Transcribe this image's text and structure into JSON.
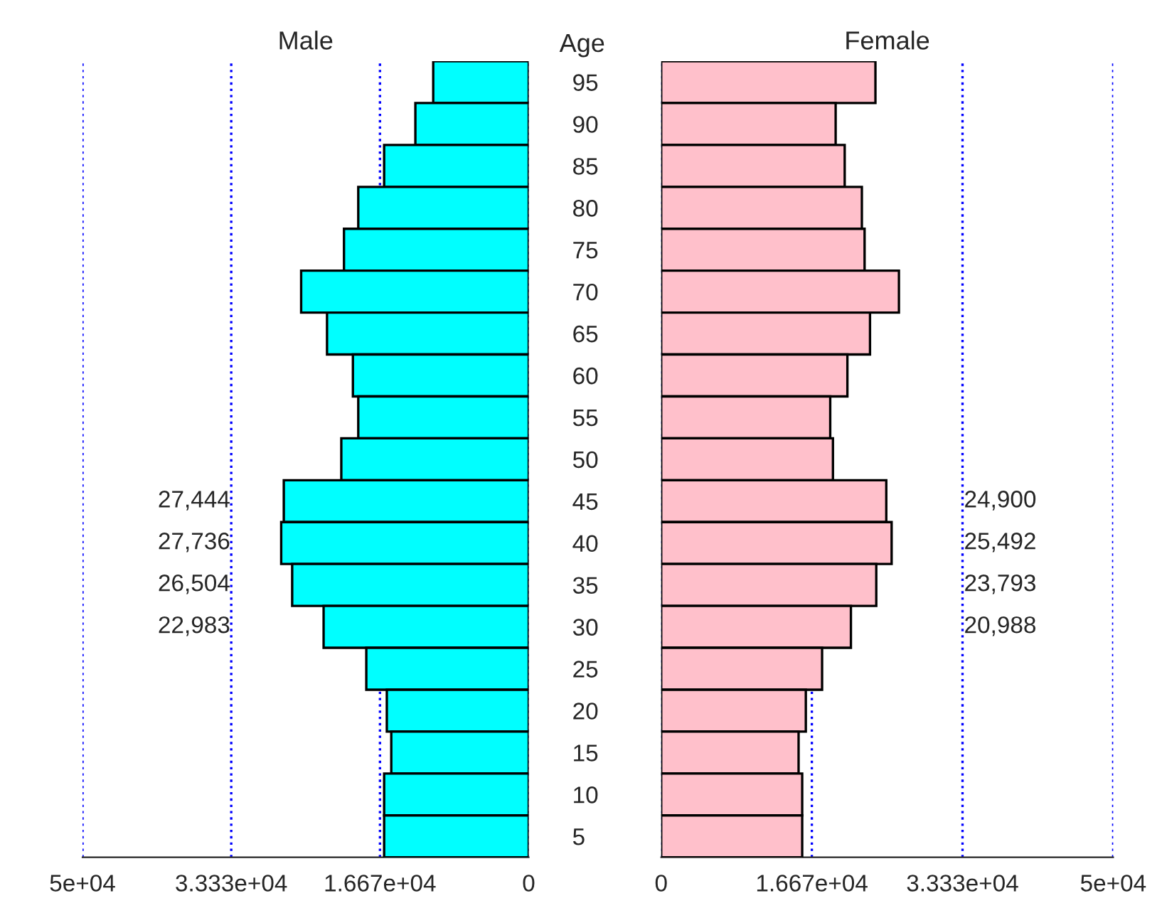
{
  "chart_data": [
    {
      "type": "bar",
      "orientation": "horizontal",
      "title": "Male",
      "ylabel": "Age",
      "categories": [
        "95",
        "90",
        "85",
        "80",
        "75",
        "70",
        "65",
        "60",
        "55",
        "50",
        "45",
        "40",
        "35",
        "30",
        "25",
        "20",
        "15",
        "10",
        "5"
      ],
      "series": [
        {
          "color": "#00ffff",
          "values": [
            10700,
            12700,
            16200,
            19100,
            20700,
            25500,
            22600,
            19700,
            19100,
            21000,
            27444,
            27736,
            26504,
            22983,
            18200,
            15900,
            15400,
            16200,
            16200
          ],
          "value_labels": [
            null,
            null,
            null,
            null,
            null,
            null,
            null,
            null,
            null,
            null,
            "27,444",
            "27,736",
            "26,504",
            "22,983",
            null,
            null,
            null,
            null,
            null
          ]
        }
      ],
      "xlim": [
        50000,
        0
      ],
      "xticks": [
        {
          "value": 50000,
          "label": "5e+04"
        },
        {
          "value": 33333,
          "label": "3.333e+04"
        },
        {
          "value": 16667,
          "label": "1.667e+04"
        },
        0
      ],
      "grid": "x",
      "legend": false
    },
    {
      "type": "bar",
      "orientation": "horizontal",
      "title": "Female",
      "categories": [
        "95",
        "90",
        "85",
        "80",
        "75",
        "70",
        "65",
        "60",
        "55",
        "50",
        "45",
        "40",
        "35",
        "30",
        "25",
        "20",
        "15",
        "10",
        "5"
      ],
      "series": [
        {
          "color": "#ffc0cb",
          "values": [
            23700,
            19300,
            20300,
            22200,
            22500,
            26300,
            23100,
            20600,
            18700,
            19000,
            24900,
            25492,
            23793,
            20988,
            17800,
            16000,
            15200,
            15600,
            15600
          ],
          "value_labels": [
            null,
            null,
            null,
            null,
            null,
            null,
            null,
            null,
            null,
            null,
            "24,900",
            "25,492",
            "23,793",
            "20,988",
            null,
            null,
            null,
            null,
            null
          ]
        }
      ],
      "xlim": [
        0,
        50000
      ],
      "xticks": [
        0,
        {
          "value": 16667,
          "label": "1.667e+04"
        },
        {
          "value": 33333,
          "label": "3.333e+04"
        },
        {
          "value": 50000,
          "label": "5e+04"
        }
      ],
      "grid": "x",
      "legend": false,
      "tick_labels": "x"
    }
  ]
}
